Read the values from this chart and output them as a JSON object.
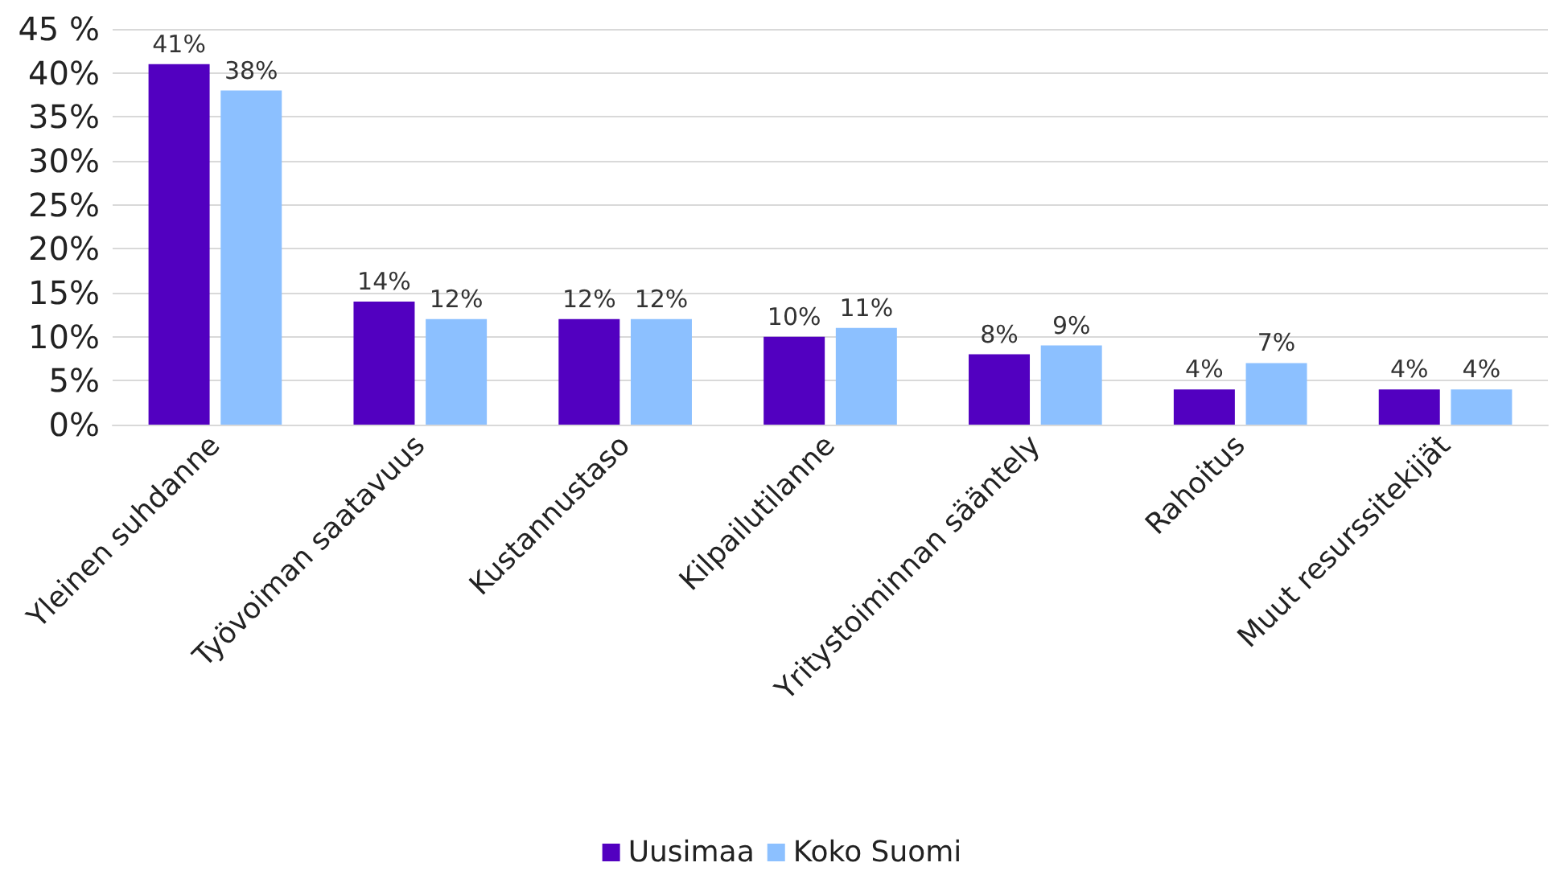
{
  "chart_data": {
    "type": "bar",
    "categories": [
      "Yleinen suhdanne",
      "Työvoiman saatavuus",
      "Kustannustaso",
      "Kilpailutilanne",
      "Yritystoiminnan sääntely",
      "Rahoitus",
      "Muut resurssitekijät"
    ],
    "series": [
      {
        "name": "Uusimaa",
        "color": "#5200c0",
        "values": [
          41,
          14,
          12,
          10,
          8,
          4,
          4
        ],
        "value_labels": [
          "41%",
          "14%",
          "12%",
          "10%",
          "8%",
          "4%",
          "4%"
        ]
      },
      {
        "name": "Koko Suomi",
        "color": "#8cc0ff",
        "values": [
          38,
          12,
          12,
          11,
          9,
          7,
          4
        ],
        "value_labels": [
          "38%",
          "12%",
          "12%",
          "11%",
          "9%",
          "7%",
          "4%"
        ]
      }
    ],
    "ylim": [
      0,
      45
    ],
    "yticks": [
      {
        "value": 0,
        "label": "0%"
      },
      {
        "value": 5,
        "label": "5%"
      },
      {
        "value": 10,
        "label": "10%"
      },
      {
        "value": 15,
        "label": "15%"
      },
      {
        "value": 20,
        "label": "20%"
      },
      {
        "value": 25,
        "label": "25%"
      },
      {
        "value": 30,
        "label": "30%"
      },
      {
        "value": 35,
        "label": "35%"
      },
      {
        "value": 40,
        "label": "40%"
      },
      {
        "value": 45,
        "label": "45 %"
      }
    ],
    "grid": "y",
    "legend": "bottom"
  }
}
